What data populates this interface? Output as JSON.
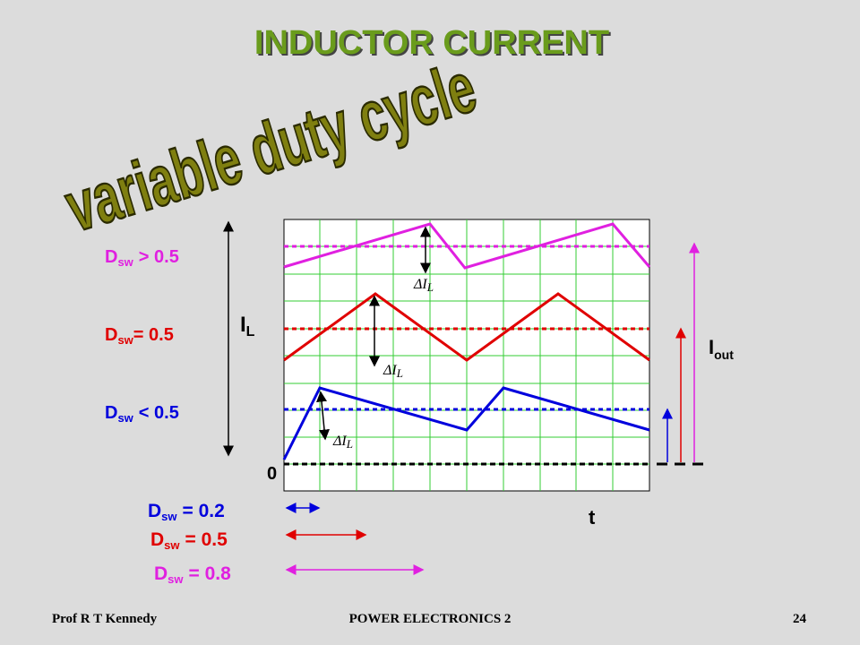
{
  "title": "INDUCTOR CURRENT",
  "subtitle": "variable duty cycle",
  "waveform_labels": [
    {
      "symbol": "D",
      "subscript": "sw",
      "condition": "> 0.5"
    },
    {
      "symbol": "D",
      "subscript": "sw",
      "condition": "= 0.5"
    },
    {
      "symbol": "D",
      "subscript": "sw",
      "condition": "< 0.5"
    }
  ],
  "axis": {
    "y_symbol": "I",
    "y_subscript": "L",
    "origin": "0",
    "x_label": "t"
  },
  "ripple_labels": [
    {
      "symbol": "ΔI",
      "subscript": "L"
    },
    {
      "symbol": "ΔI",
      "subscript": "L"
    },
    {
      "symbol": "ΔI",
      "subscript": "L"
    }
  ],
  "output_label": {
    "symbol": "I",
    "subscript": "out"
  },
  "duty_labels": [
    {
      "symbol": "D",
      "subscript": "sw",
      "condition": "= 0.2"
    },
    {
      "symbol": "D",
      "subscript": "sw",
      "condition": "= 0.5"
    },
    {
      "symbol": "D",
      "subscript": "sw",
      "condition": "= 0.8"
    }
  ],
  "footer": {
    "author": "Prof R T Kennedy",
    "course": "POWER ELECTRONICS 2",
    "page": "24"
  }
}
